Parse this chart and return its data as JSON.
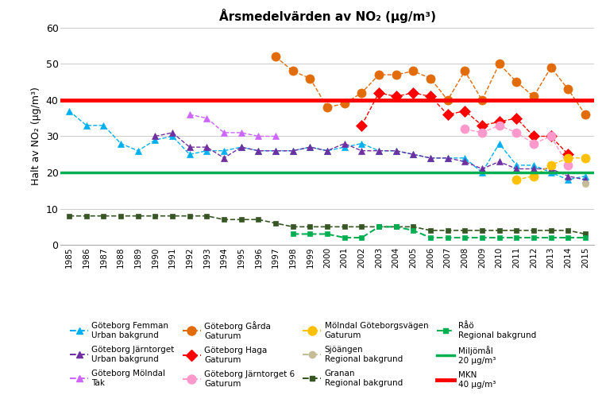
{
  "title": "Årsmedelvärden av NO₂ (μg/m³)",
  "ylabel": "Halt av NO₂ (μg/m³)",
  "ylim": [
    0,
    60
  ],
  "yticks": [
    0,
    10,
    20,
    30,
    40,
    50,
    60
  ],
  "years": [
    1985,
    1986,
    1987,
    1988,
    1989,
    1990,
    1991,
    1992,
    1993,
    1994,
    1995,
    1996,
    1997,
    1998,
    1999,
    2000,
    2001,
    2002,
    2003,
    2004,
    2005,
    2006,
    2007,
    2008,
    2009,
    2010,
    2011,
    2012,
    2013,
    2014,
    2015
  ],
  "femman": [
    37,
    33,
    33,
    28,
    26,
    29,
    30,
    25,
    26,
    26,
    27,
    26,
    26,
    26,
    27,
    26,
    27,
    28,
    26,
    26,
    25,
    24,
    24,
    24,
    20,
    28,
    22,
    22,
    20,
    18,
    19
  ],
  "femman_color": "#00B0F0",
  "femman_marker": "^",
  "jarntorget": [
    null,
    null,
    null,
    null,
    null,
    30,
    31,
    27,
    27,
    24,
    27,
    26,
    26,
    26,
    27,
    26,
    28,
    26,
    26,
    26,
    25,
    24,
    24,
    23,
    21,
    23,
    21,
    21,
    21,
    19,
    18
  ],
  "jarntorget_color": "#7030A0",
  "jarntorget_marker": "^",
  "molndal": [
    null,
    null,
    null,
    null,
    null,
    null,
    null,
    36,
    35,
    31,
    31,
    30,
    30,
    null,
    null,
    null,
    null,
    null,
    null,
    null,
    null,
    null,
    null,
    null,
    null,
    null,
    null,
    null,
    null,
    null,
    null
  ],
  "molndal_color": "#CC66FF",
  "molndal_marker": "^",
  "garda": [
    null,
    null,
    null,
    null,
    null,
    null,
    null,
    null,
    null,
    null,
    null,
    null,
    52,
    48,
    46,
    38,
    39,
    42,
    47,
    47,
    48,
    46,
    40,
    48,
    40,
    50,
    45,
    41,
    49,
    43,
    36
  ],
  "garda_color": "#E26B0A",
  "garda_marker": "o",
  "haga": [
    null,
    null,
    null,
    null,
    null,
    null,
    null,
    null,
    null,
    null,
    null,
    null,
    null,
    null,
    null,
    null,
    null,
    33,
    42,
    41,
    42,
    41,
    36,
    37,
    33,
    34,
    35,
    30,
    30,
    25,
    null
  ],
  "haga_color": "#FF0000",
  "haga_marker": "D",
  "jarntorget6": [
    null,
    null,
    null,
    null,
    null,
    null,
    null,
    null,
    null,
    null,
    null,
    null,
    null,
    null,
    null,
    null,
    null,
    null,
    null,
    null,
    null,
    null,
    null,
    32,
    31,
    33,
    31,
    28,
    30,
    22,
    null
  ],
  "jarntorget6_color": "#FF99CC",
  "jarntorget6_marker": "o",
  "molndalvagen": [
    null,
    null,
    null,
    null,
    null,
    null,
    null,
    null,
    null,
    null,
    null,
    null,
    null,
    null,
    null,
    null,
    null,
    null,
    null,
    null,
    null,
    null,
    null,
    null,
    null,
    null,
    18,
    19,
    22,
    24,
    24
  ],
  "molndalvagen_color": "#FFC000",
  "molndalvagen_marker": "o",
  "sjoangen": [
    null,
    null,
    null,
    null,
    null,
    null,
    null,
    null,
    null,
    null,
    null,
    null,
    null,
    null,
    null,
    null,
    null,
    null,
    null,
    null,
    null,
    null,
    null,
    null,
    null,
    null,
    null,
    null,
    null,
    null,
    17
  ],
  "sjoangen_color": "#C4BD97",
  "sjoangen_marker": "o",
  "granan": [
    8,
    8,
    8,
    8,
    8,
    8,
    8,
    8,
    8,
    7,
    7,
    7,
    6,
    5,
    5,
    5,
    5,
    5,
    5,
    5,
    5,
    4,
    4,
    4,
    4,
    4,
    4,
    4,
    4,
    4,
    3
  ],
  "granan_color": "#375623",
  "granan_marker": "s",
  "rao": [
    null,
    null,
    null,
    null,
    null,
    null,
    null,
    null,
    null,
    null,
    null,
    null,
    null,
    3,
    3,
    3,
    2,
    2,
    5,
    5,
    4,
    2,
    2,
    2,
    2,
    2,
    2,
    2,
    2,
    2,
    2
  ],
  "rao_color": "#00B050",
  "rao_marker": "s",
  "miljomal": 20,
  "miljomal_color": "#00B050",
  "mkn": 40,
  "mkn_color": "#FF0000"
}
